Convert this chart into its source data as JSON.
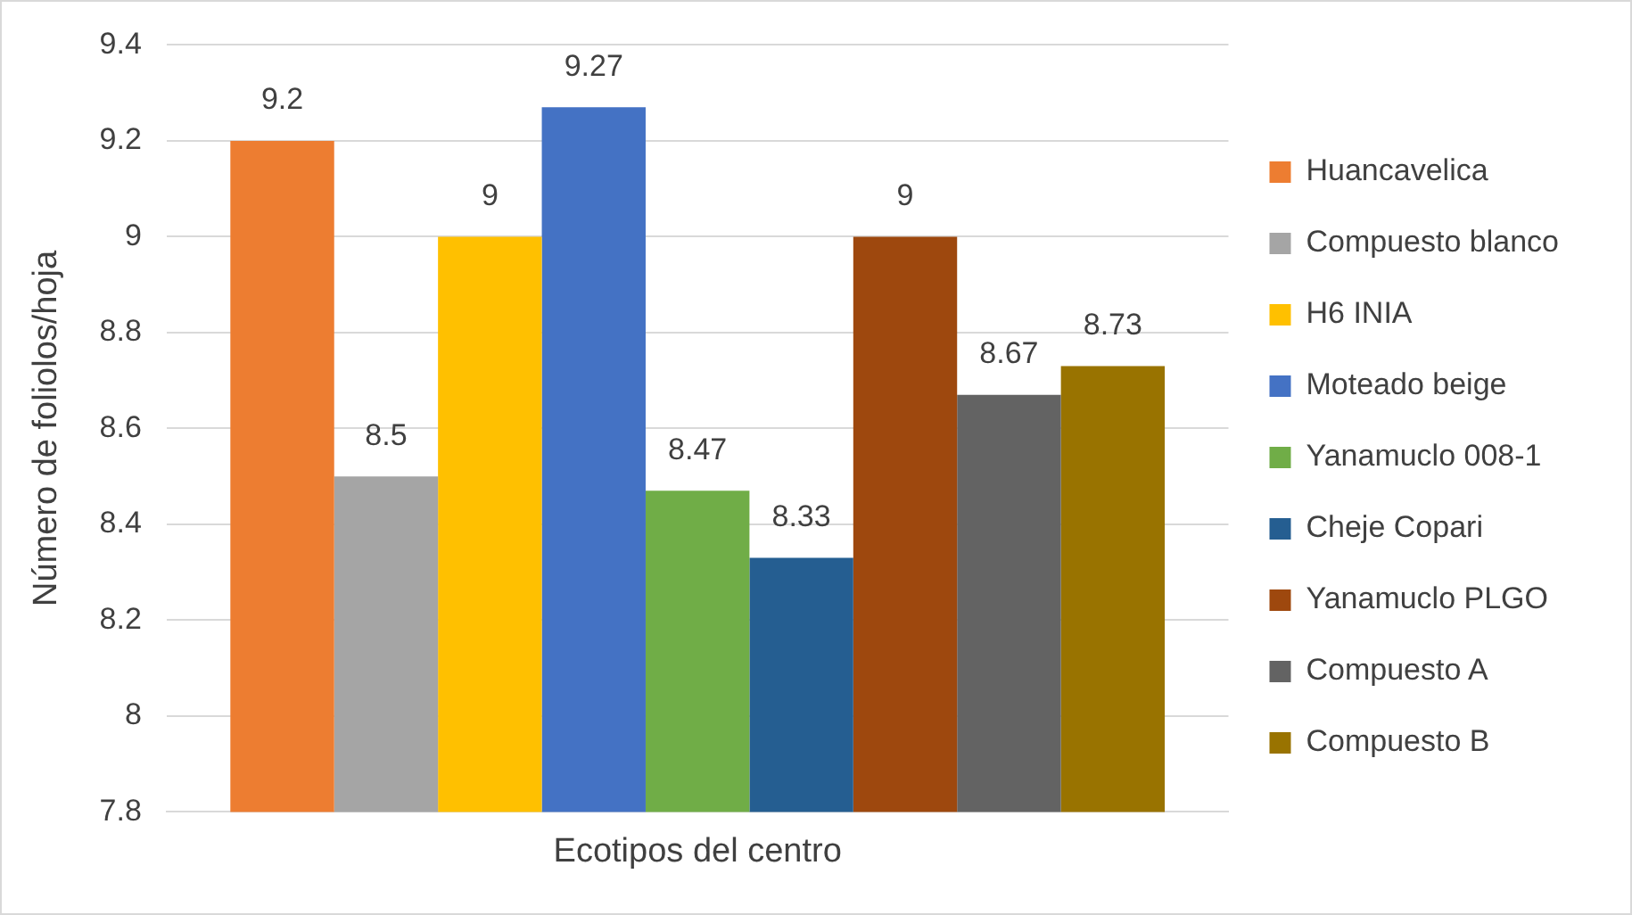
{
  "chart_data": {
    "type": "bar",
    "ylabel": "Número de foliolos/hoja",
    "categories": [
      "Ecotipos del centro"
    ],
    "series": [
      {
        "name": "Huancavelica",
        "color": "#ed7d31",
        "values": [
          9.2
        ]
      },
      {
        "name": "Compuesto blanco",
        "color": "#a5a5a5",
        "values": [
          8.5
        ]
      },
      {
        "name": "H6 INIA",
        "color": "#ffc000",
        "values": [
          9
        ]
      },
      {
        "name": "Moteado beige",
        "color": "#4472c4",
        "values": [
          9.27
        ]
      },
      {
        "name": "Yanamuclo 008-1",
        "color": "#70ad47",
        "values": [
          8.47
        ]
      },
      {
        "name": "Cheje Copari",
        "color": "#255e91",
        "values": [
          8.33
        ]
      },
      {
        "name": "Yanamuclo PLGO",
        "color": "#9e480e",
        "values": [
          9
        ]
      },
      {
        "name": "Compuesto A",
        "color": "#636363",
        "values": [
          8.67
        ]
      },
      {
        "name": "Compuesto B",
        "color": "#997300",
        "values": [
          8.73
        ]
      }
    ],
    "ylim": [
      7.8,
      9.4
    ],
    "yticks": [
      7.8,
      8,
      8.2,
      8.4,
      8.6,
      8.8,
      9,
      9.2,
      9.4
    ],
    "grid": "y",
    "legend": "right",
    "data_labels": true
  }
}
